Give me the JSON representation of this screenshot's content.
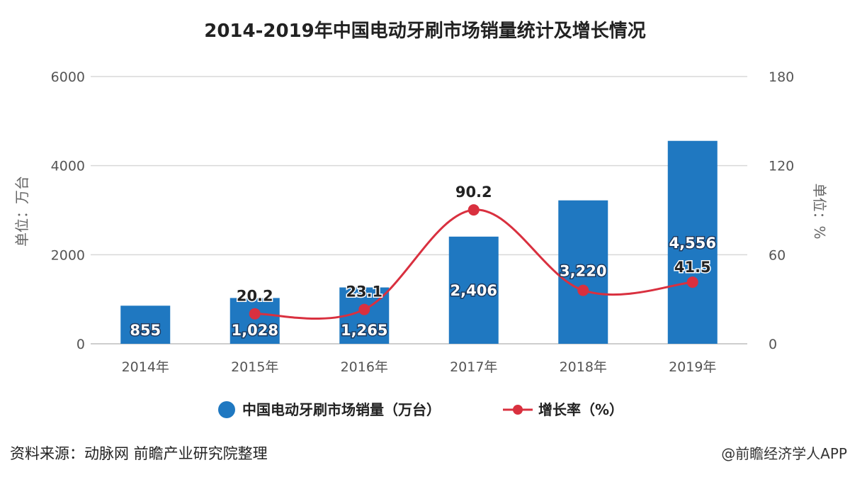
{
  "title": "2014-2019年中国电动牙刷市场销量统计及增长情况",
  "colors": {
    "bar": "#1f78c1",
    "line": "#d9303f",
    "grid": "#d8d8d8"
  },
  "chart_data": {
    "type": "bar",
    "categories": [
      "2014年",
      "2015年",
      "2016年",
      "2017年",
      "2018年",
      "2019年"
    ],
    "series": [
      {
        "name": "中国电动牙刷市场销量（万台）",
        "type": "bar",
        "axis": "left",
        "values": [
          855,
          1028,
          1265,
          2406,
          3220,
          4556
        ],
        "labels": [
          "855",
          "1,028",
          "1,265",
          "2,406",
          "3,220",
          "4,556"
        ]
      },
      {
        "name": "增长率（%）",
        "type": "line",
        "axis": "right",
        "values": [
          null,
          20.2,
          23.1,
          90.2,
          36.0,
          41.5
        ],
        "labels": [
          "",
          "20.2",
          "23.1",
          "90.2",
          "",
          "41.5"
        ]
      }
    ],
    "y_left": {
      "label": "单位：万台",
      "range": [
        0,
        6000
      ],
      "ticks": [
        "0",
        "2000",
        "4000",
        "6000"
      ],
      "tick_values": [
        0,
        2000,
        4000,
        6000
      ]
    },
    "y_right": {
      "label": "单位：%",
      "range": [
        0,
        180
      ],
      "ticks": [
        "0",
        "60",
        "120",
        "180"
      ],
      "tick_values": [
        0,
        60,
        120,
        180
      ]
    },
    "grid": true,
    "legend_position": "bottom"
  },
  "footer": {
    "source": "资料来源：动脉网 前瞻产业研究院整理",
    "brand": "@前瞻经济学人APP"
  }
}
